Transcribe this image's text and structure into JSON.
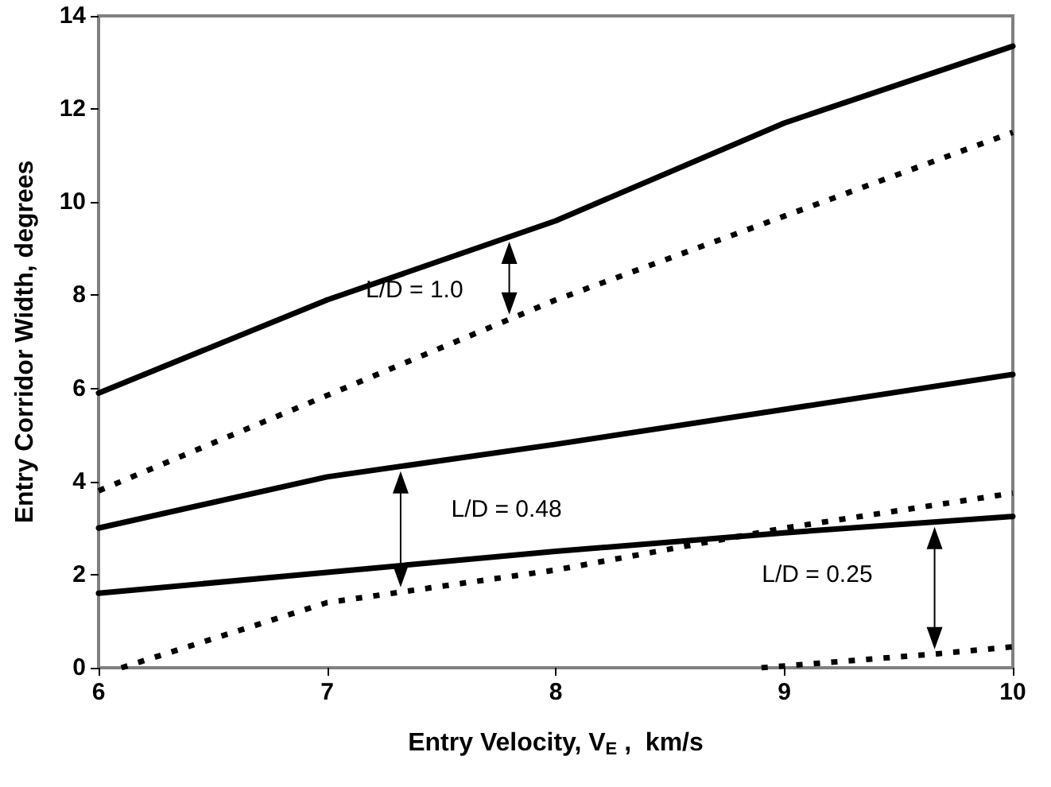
{
  "chart_data": {
    "type": "line",
    "xlabel": "Entry Velocity, V$_{E}$ ,  km/s",
    "ylabel": "Entry Corridor Width, degrees",
    "xlim": [
      6,
      10
    ],
    "xticks": [
      6,
      7,
      8,
      9,
      10
    ],
    "ylim": [
      0,
      14
    ],
    "yticks": [
      0,
      2,
      4,
      6,
      8,
      10,
      12,
      14
    ],
    "grid": false,
    "marker": "none",
    "series": [
      {
        "color": "#000000",
        "line_style": "solid",
        "x": [
          6,
          7,
          8,
          9,
          10
        ],
        "values": [
          5.9,
          7.9,
          9.6,
          11.7,
          13.35
        ]
      },
      {
        "color": "#000000",
        "line_style": "dotted",
        "x": [
          6,
          7,
          8,
          9,
          10
        ],
        "values": [
          3.8,
          5.85,
          7.9,
          9.7,
          11.5
        ]
      },
      {
        "color": "#000000",
        "line_style": "solid",
        "x": [
          6,
          7,
          8,
          9,
          10
        ],
        "values": [
          3.0,
          4.1,
          4.8,
          5.55,
          6.3
        ]
      },
      {
        "color": "#000000",
        "line_style": "dotted",
        "x": [
          6.1,
          7,
          8,
          9,
          10
        ],
        "values": [
          0,
          1.4,
          2.1,
          3.0,
          3.75
        ]
      },
      {
        "color": "#000000",
        "line_style": "solid",
        "x": [
          6,
          7,
          8,
          9,
          10
        ],
        "values": [
          1.6,
          2.05,
          2.5,
          2.9,
          3.25
        ]
      },
      {
        "color": "#000000",
        "line_style": "dotted",
        "x": [
          8.9,
          9.67,
          10
        ],
        "values": [
          0,
          0.3,
          0.45
        ]
      }
    ],
    "annotations": [
      "L/D = 1.0",
      "L/D = 0.48",
      "L/D = 0.25"
    ]
  }
}
